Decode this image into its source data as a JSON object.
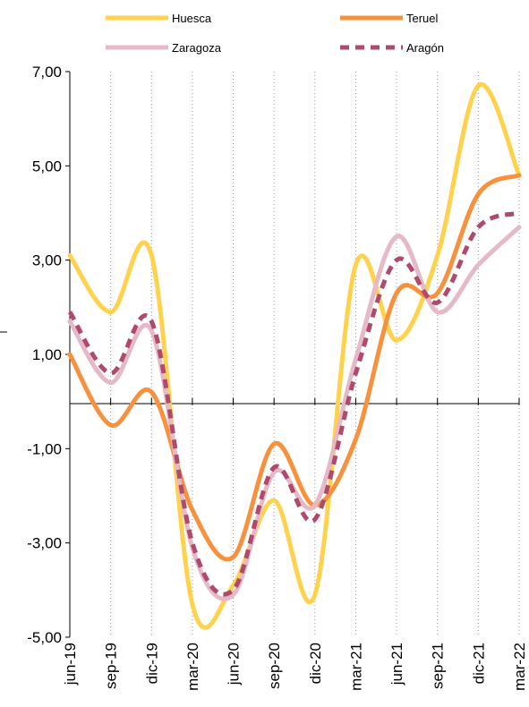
{
  "chart_data": {
    "type": "line",
    "title": "",
    "xlabel": "",
    "ylabel": "",
    "categories": [
      "jun-19",
      "sep-19",
      "dic-19",
      "mar-20",
      "jun-20",
      "sep-20",
      "dic-20",
      "mar-21",
      "jun-21",
      "sep-21",
      "dic-21",
      "mar-22"
    ],
    "y_tick_labels": [
      "7,00",
      "5,00",
      "3,00",
      "1,00",
      "-1,00",
      "-3,00",
      "-5,00"
    ],
    "ylim": [
      -5,
      7
    ],
    "grid": "vertical",
    "legend_position": "top",
    "series": [
      {
        "name": "Huesca",
        "color": "#FFD24D",
        "dash": "solid",
        "values": [
          3.1,
          1.9,
          3.1,
          -4.3,
          -3.9,
          -2.1,
          -4.1,
          2.9,
          1.3,
          3.1,
          6.7,
          4.8
        ]
      },
      {
        "name": "Teruel",
        "color": "#F7913D",
        "dash": "solid",
        "values": [
          1.0,
          -0.5,
          0.2,
          -2.3,
          -3.3,
          -0.9,
          -2.2,
          -0.8,
          2.3,
          2.3,
          4.4,
          4.8
        ]
      },
      {
        "name": "Zaragoza",
        "color": "#E6B9C6",
        "dash": "solid",
        "values": [
          1.7,
          0.4,
          1.5,
          -3.1,
          -4.1,
          -1.5,
          -2.2,
          0.9,
          3.5,
          1.9,
          2.9,
          3.7
        ]
      },
      {
        "name": "Aragón",
        "color": "#B04A6C",
        "dash": "dashed",
        "values": [
          1.9,
          0.6,
          1.7,
          -3.0,
          -4.0,
          -1.4,
          -2.5,
          0.6,
          3.0,
          2.1,
          3.7,
          4.0
        ]
      }
    ]
  }
}
